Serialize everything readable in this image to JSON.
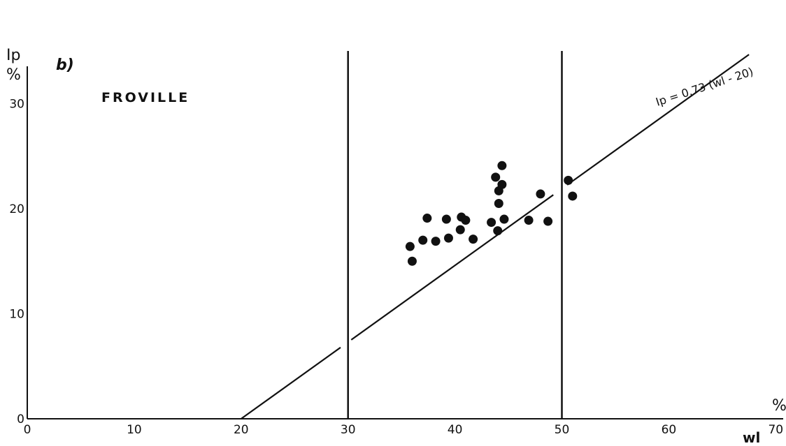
{
  "chart_data": {
    "type": "scatter",
    "panel_label": "b)",
    "title": "FROVILLE",
    "ylabel_top": "Ip",
    "ylabel_unit": "%",
    "xlabel_unit": "%",
    "xlabel": "wl",
    "xlim": [
      0,
      70
    ],
    "ylim": [
      0,
      30
    ],
    "x_ticks": [
      0,
      10,
      20,
      30,
      40,
      50,
      60,
      70
    ],
    "y_ticks": [
      0,
      10,
      20,
      30
    ],
    "vertical_lines": [
      30,
      50
    ],
    "line_equation": "Ip = 0.73 (wl - 20)",
    "regression_line": {
      "slope": 0.73,
      "x_at_zero": 20,
      "x_end": 67.5
    },
    "points": [
      {
        "x": 35.8,
        "y": 16.4
      },
      {
        "x": 36.0,
        "y": 15.0
      },
      {
        "x": 37.0,
        "y": 17.0
      },
      {
        "x": 37.4,
        "y": 19.1
      },
      {
        "x": 38.2,
        "y": 16.9
      },
      {
        "x": 39.2,
        "y": 19.0
      },
      {
        "x": 39.4,
        "y": 17.2
      },
      {
        "x": 40.5,
        "y": 18.0
      },
      {
        "x": 40.6,
        "y": 19.2
      },
      {
        "x": 41.0,
        "y": 18.9
      },
      {
        "x": 41.7,
        "y": 17.1
      },
      {
        "x": 43.4,
        "y": 18.7
      },
      {
        "x": 43.8,
        "y": 23.0
      },
      {
        "x": 44.0,
        "y": 17.9
      },
      {
        "x": 44.1,
        "y": 20.5
      },
      {
        "x": 44.1,
        "y": 21.7
      },
      {
        "x": 44.4,
        "y": 24.1
      },
      {
        "x": 44.4,
        "y": 22.3
      },
      {
        "x": 44.6,
        "y": 19.0
      },
      {
        "x": 46.9,
        "y": 18.9
      },
      {
        "x": 48.0,
        "y": 21.4
      },
      {
        "x": 48.7,
        "y": 18.8
      },
      {
        "x": 50.6,
        "y": 22.7
      },
      {
        "x": 51.0,
        "y": 21.2
      }
    ]
  }
}
